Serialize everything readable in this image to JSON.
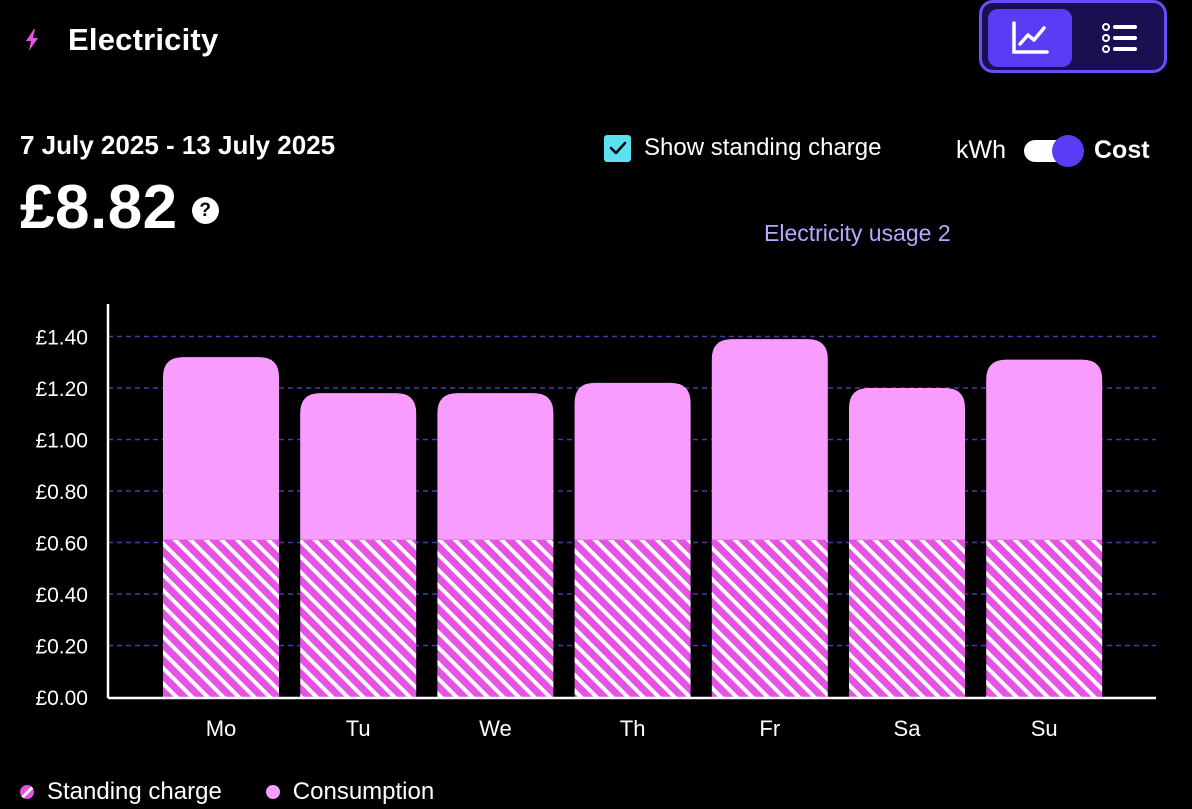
{
  "header": {
    "title": "Electricity",
    "bolt_icon": "lightning-bolt-icon"
  },
  "view_switch": {
    "chart_icon": "line-chart-icon",
    "list_icon": "list-icon"
  },
  "summary": {
    "date_range": "7 July 2025 - 13 July 2025",
    "total": "£8.82",
    "help_symbol": "?"
  },
  "controls": {
    "show_standing_charge_label": "Show standing charge",
    "show_standing_charge_checked": true,
    "unit_kwh_label": "kWh",
    "unit_cost_label": "Cost",
    "selected_unit": "Cost"
  },
  "usage_caption": "Electricity usage 2",
  "legend": {
    "standing_label": "Standing charge",
    "consumption_label": "Consumption"
  },
  "colors": {
    "background": "#000000",
    "consumption": "#f99cff",
    "standing_charge": "#e651e6",
    "accent": "#5a3cf5",
    "gridline": "#4a3aa8",
    "checkbox": "#5ce1f0"
  },
  "chart_data": {
    "type": "bar",
    "stacked": true,
    "categories": [
      "Mo",
      "Tu",
      "We",
      "Th",
      "Fr",
      "Sa",
      "Su"
    ],
    "series": [
      {
        "name": "Standing charge",
        "values": [
          0.61,
          0.61,
          0.61,
          0.61,
          0.61,
          0.61,
          0.61
        ]
      },
      {
        "name": "Consumption",
        "values": [
          0.71,
          0.57,
          0.57,
          0.61,
          0.78,
          0.59,
          0.7
        ]
      }
    ],
    "y_ticks": [
      "£0.00",
      "£0.20",
      "£0.40",
      "£0.60",
      "£0.80",
      "£1.00",
      "£1.20",
      "£1.40"
    ],
    "ylim": [
      0,
      1.5
    ],
    "grid": true,
    "legend_position": "bottom-left"
  }
}
